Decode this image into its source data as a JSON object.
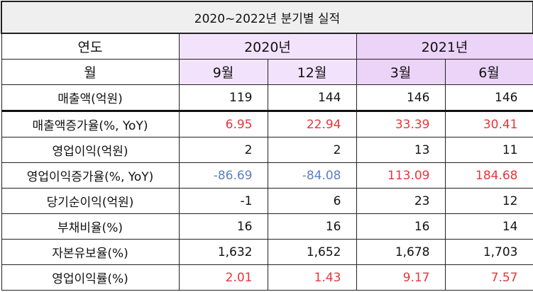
{
  "title": "2020~2022년 분기별 실적",
  "header": {
    "year_label": "연도",
    "month_label": "월",
    "years": [
      "2020년",
      "2021년"
    ],
    "months": [
      "9월",
      "12월",
      "3월",
      "6월"
    ]
  },
  "colors": {
    "positive": "#e8353a",
    "negative": "#5b7fc4",
    "year_2020_bg": "#f3e2fb",
    "year_2021_bg": "#ecd3f8",
    "title_bg": "#efefef"
  },
  "rows": [
    {
      "label": "매출액(억원)",
      "values": [
        "119",
        "144",
        "146",
        "146"
      ],
      "colors": [
        "",
        "",
        "",
        ""
      ]
    },
    {
      "label": "매출액증가율(%, YoY)",
      "values": [
        "6.95",
        "22.94",
        "33.39",
        "30.41"
      ],
      "colors": [
        "r",
        "r",
        "r",
        "r"
      ]
    },
    {
      "label": "영업이익(억원)",
      "values": [
        "2",
        "2",
        "13",
        "11"
      ],
      "colors": [
        "",
        "",
        "",
        ""
      ]
    },
    {
      "label": "영업이익증가율(%, YoY)",
      "values": [
        "-86.69",
        "-84.08",
        "113.09",
        "184.68"
      ],
      "colors": [
        "b",
        "b",
        "r",
        "r"
      ]
    },
    {
      "label": "당기순이익(억원)",
      "values": [
        "-1",
        "6",
        "23",
        "12"
      ],
      "colors": [
        "",
        "",
        "",
        ""
      ]
    },
    {
      "label": "부채비율(%)",
      "values": [
        "16",
        "16",
        "16",
        "14"
      ],
      "colors": [
        "",
        "",
        "",
        ""
      ]
    },
    {
      "label": "자본유보율(%)",
      "values": [
        "1,632",
        "1,652",
        "1,678",
        "1,703"
      ],
      "colors": [
        "",
        "",
        "",
        ""
      ]
    },
    {
      "label": "영업이익률(%)",
      "values": [
        "2.01",
        "1.43",
        "9.17",
        "7.57"
      ],
      "colors": [
        "r",
        "r",
        "r",
        "r"
      ]
    }
  ]
}
